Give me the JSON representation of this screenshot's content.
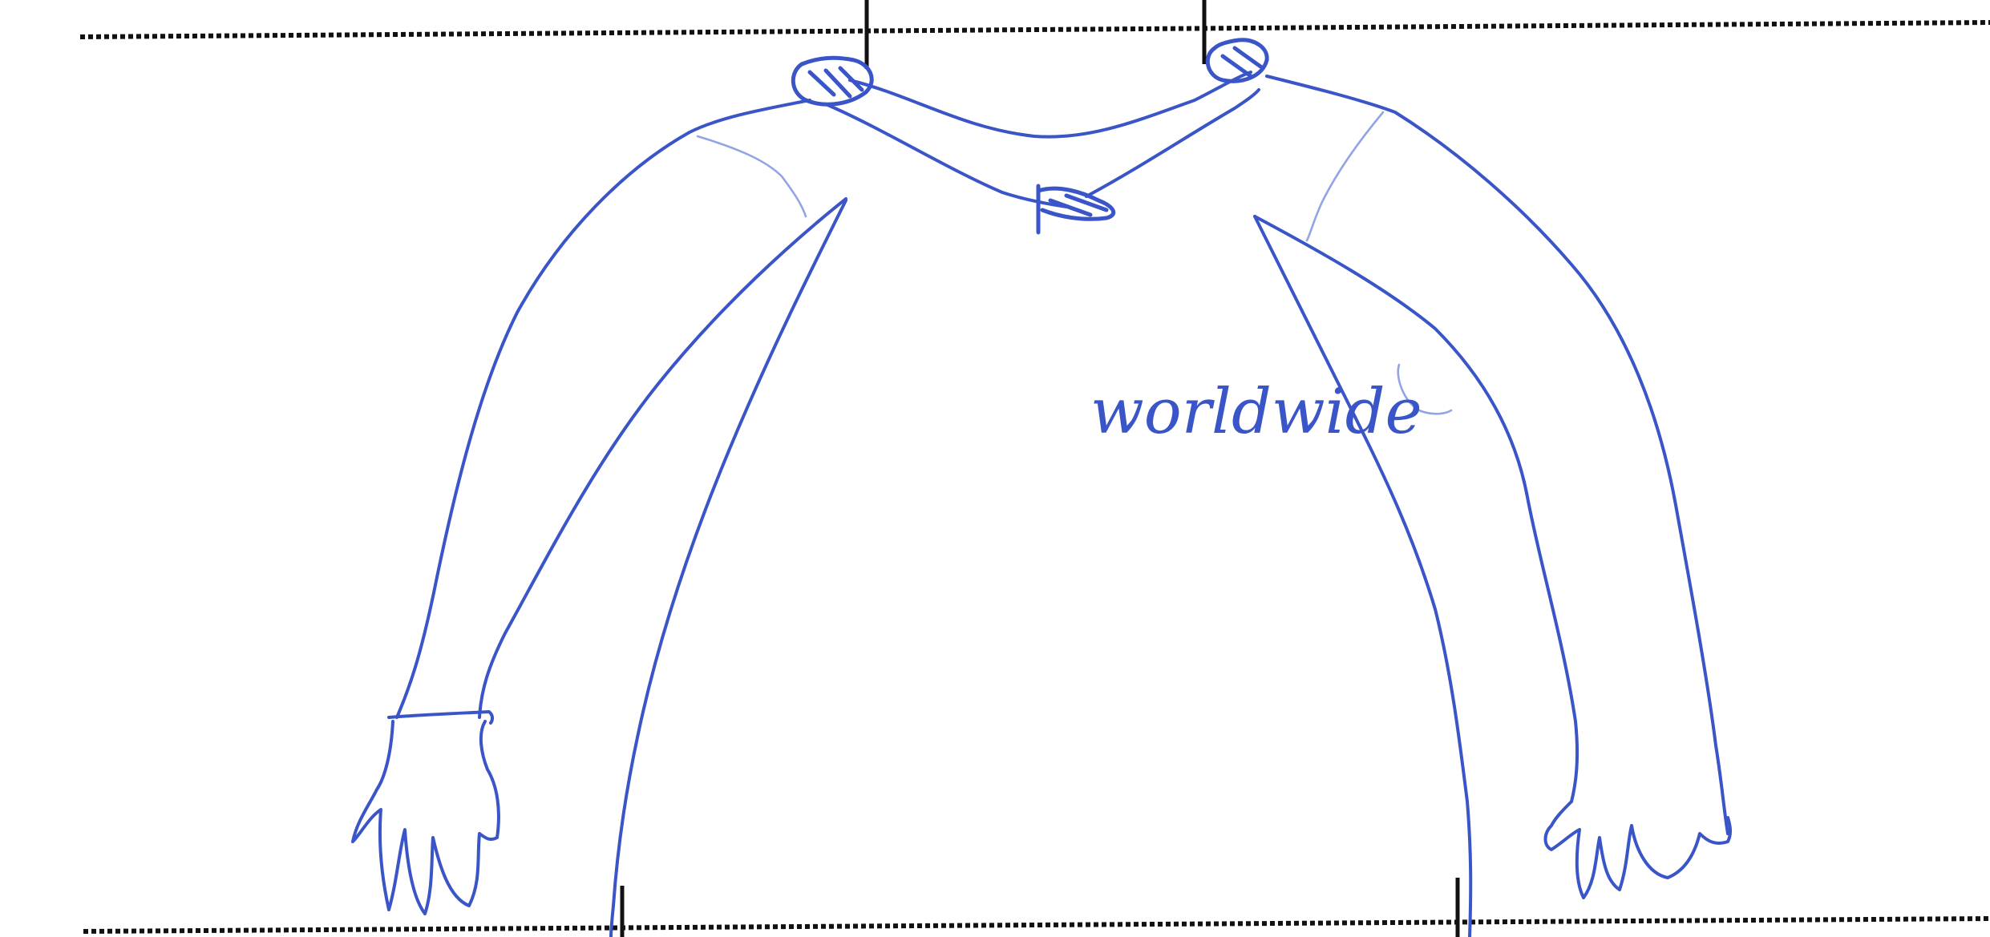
{
  "drawing": {
    "subject": "long-sleeve-shirt-sketch",
    "chest_text": "worldwide"
  },
  "colors": {
    "ink": "#3a55c8",
    "ink_light": "#6f86dc",
    "guide": "#111111",
    "background": "#ffffff"
  }
}
